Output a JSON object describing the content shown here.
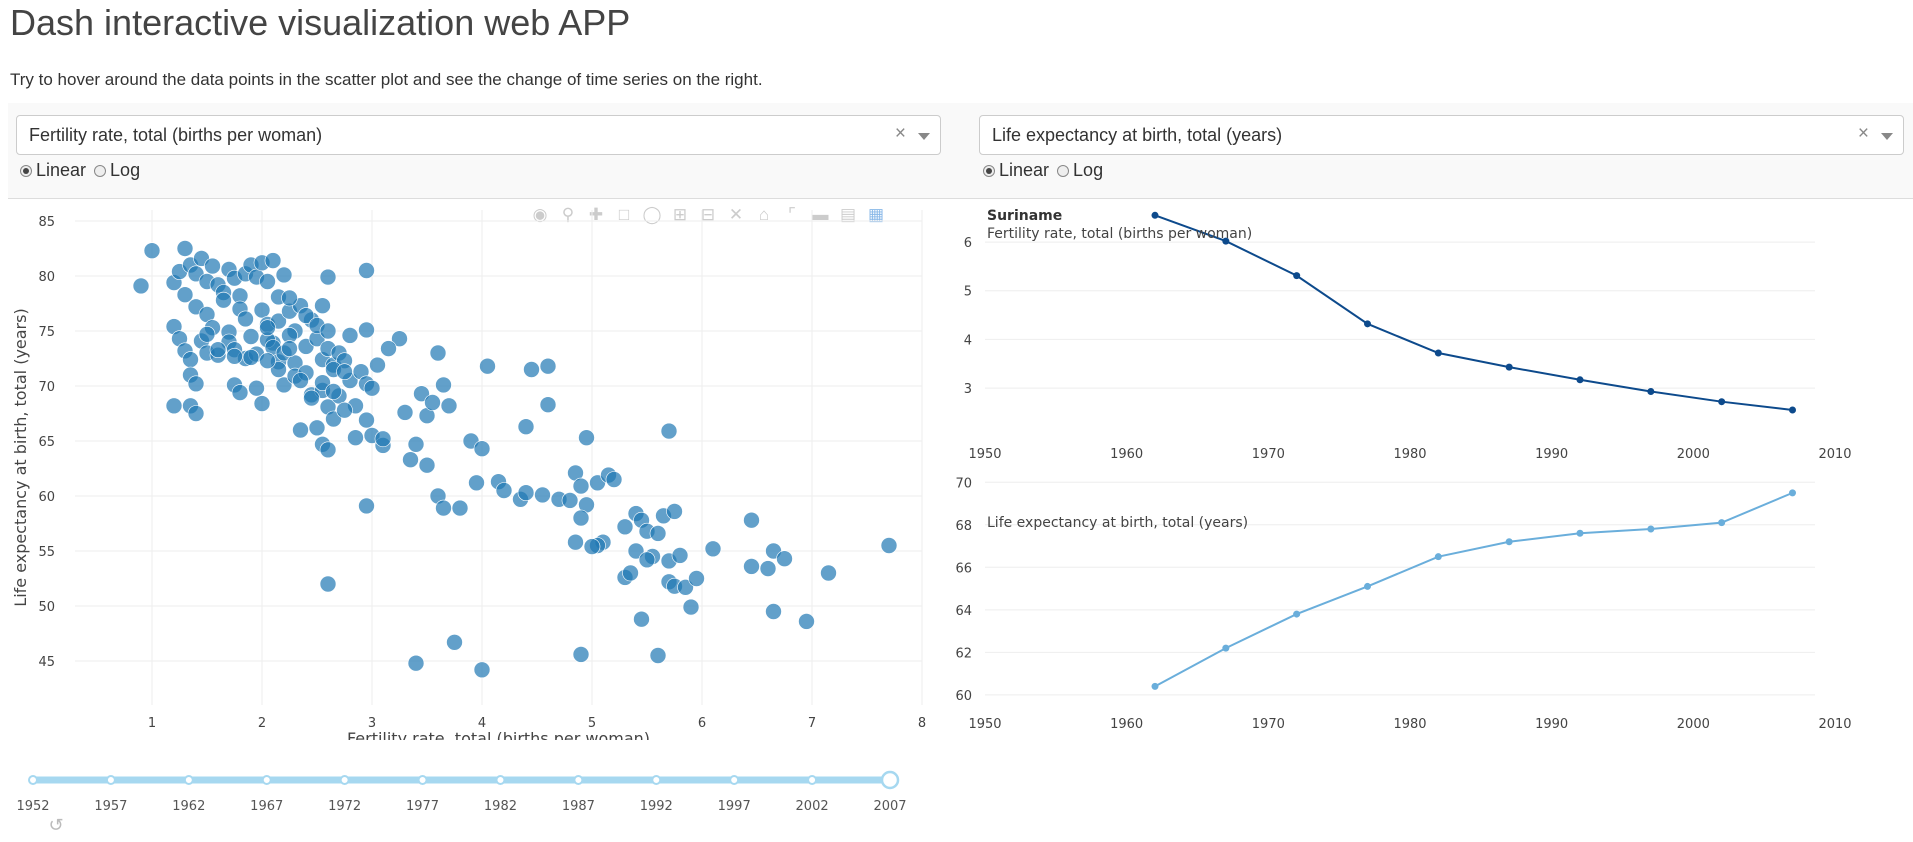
{
  "page": {
    "title": "Dash interactive visualization web APP",
    "subtitle": "Try to hover around the data points in the scatter plot and see the change of time series on the right."
  },
  "controls": {
    "left": {
      "dropdown_value": "Fertility rate, total (births per woman)",
      "clear": "×",
      "radio_options": [
        "Linear",
        "Log"
      ],
      "selected": "Linear"
    },
    "right": {
      "dropdown_value": "Life expectancy at birth, total (years)",
      "clear": "×",
      "radio_options": [
        "Linear",
        "Log"
      ],
      "selected": "Linear"
    }
  },
  "modebar_icons": [
    "camera-icon",
    "zoom-icon",
    "pan-icon",
    "box-select-icon",
    "lasso-icon",
    "zoom-in-icon",
    "zoom-out-icon",
    "autoscale-icon",
    "reset-axes-icon",
    "spike-lines-icon",
    "hover-closest-icon",
    "hover-compare-icon",
    "plotly-logo-icon"
  ],
  "colors": {
    "scatter": "#1f77b4",
    "series_top": "#0d4a8c",
    "series_bottom": "#6aaedb",
    "slider": "#a6d8f0",
    "grid": "#eeeeee"
  },
  "chart_data": [
    {
      "type": "scatter",
      "xlabel": "Fertility rate, total (births per woman)",
      "ylabel": "Life expectancy at birth, total (years)",
      "xlim": [
        0.3,
        8.0
      ],
      "ylim": [
        41,
        86
      ],
      "xticks": [
        1,
        2,
        3,
        4,
        5,
        6,
        7,
        8
      ],
      "yticks": [
        45,
        50,
        55,
        60,
        65,
        70,
        75,
        80,
        85
      ],
      "points": [
        [
          0.9,
          79.1
        ],
        [
          1.0,
          82.3
        ],
        [
          1.2,
          79.4
        ],
        [
          1.25,
          80.4
        ],
        [
          1.3,
          82.5
        ],
        [
          1.35,
          81.0
        ],
        [
          1.4,
          80.2
        ],
        [
          1.45,
          81.6
        ],
        [
          1.3,
          78.3
        ],
        [
          1.5,
          79.5
        ],
        [
          1.55,
          80.9
        ],
        [
          1.6,
          79.2
        ],
        [
          1.65,
          78.5
        ],
        [
          1.7,
          80.6
        ],
        [
          1.75,
          79.8
        ],
        [
          1.8,
          78.2
        ],
        [
          1.85,
          80.2
        ],
        [
          1.9,
          81.0
        ],
        [
          1.95,
          79.9
        ],
        [
          2.0,
          81.2
        ],
        [
          2.05,
          79.5
        ],
        [
          2.1,
          81.4
        ],
        [
          2.15,
          78.1
        ],
        [
          2.2,
          80.1
        ],
        [
          1.4,
          77.2
        ],
        [
          1.5,
          76.5
        ],
        [
          1.55,
          75.3
        ],
        [
          1.65,
          77.8
        ],
        [
          1.7,
          74.9
        ],
        [
          1.8,
          77.0
        ],
        [
          1.85,
          76.1
        ],
        [
          1.9,
          74.5
        ],
        [
          2.0,
          76.9
        ],
        [
          2.05,
          75.6
        ],
        [
          2.1,
          73.9
        ],
        [
          2.15,
          75.9
        ],
        [
          2.25,
          76.8
        ],
        [
          2.3,
          75.0
        ],
        [
          2.35,
          77.3
        ],
        [
          2.45,
          76.0
        ],
        [
          1.2,
          75.4
        ],
        [
          1.25,
          74.3
        ],
        [
          1.3,
          73.2
        ],
        [
          1.35,
          72.4
        ],
        [
          1.45,
          74.1
        ],
        [
          1.5,
          73.0
        ],
        [
          1.6,
          72.8
        ],
        [
          1.7,
          74.0
        ],
        [
          1.75,
          73.3
        ],
        [
          1.85,
          72.5
        ],
        [
          1.95,
          72.9
        ],
        [
          2.05,
          74.2
        ],
        [
          2.1,
          73.5
        ],
        [
          2.15,
          72.2
        ],
        [
          2.2,
          73.0
        ],
        [
          2.25,
          74.6
        ],
        [
          2.3,
          72.1
        ],
        [
          2.4,
          73.6
        ],
        [
          2.5,
          74.3
        ],
        [
          2.55,
          72.4
        ],
        [
          2.6,
          73.4
        ],
        [
          2.65,
          71.9
        ],
        [
          2.7,
          73.0
        ],
        [
          2.75,
          72.3
        ],
        [
          1.35,
          71.0
        ],
        [
          1.4,
          70.2
        ],
        [
          1.75,
          70.1
        ],
        [
          1.8,
          69.4
        ],
        [
          1.95,
          69.8
        ],
        [
          2.0,
          68.4
        ],
        [
          2.15,
          71.5
        ],
        [
          2.2,
          70.1
        ],
        [
          2.3,
          70.9
        ],
        [
          2.45,
          69.2
        ],
        [
          2.55,
          69.6
        ],
        [
          2.6,
          68.1
        ],
        [
          2.7,
          69.1
        ],
        [
          2.8,
          70.5
        ],
        [
          2.85,
          68.2
        ],
        [
          2.9,
          71.3
        ],
        [
          2.95,
          70.2
        ],
        [
          3.0,
          69.8
        ],
        [
          3.05,
          71.9
        ],
        [
          2.65,
          67.0
        ],
        [
          2.75,
          67.8
        ],
        [
          2.5,
          66.2
        ],
        [
          2.35,
          66.0
        ],
        [
          2.55,
          64.7
        ],
        [
          2.6,
          64.2
        ],
        [
          2.85,
          65.3
        ],
        [
          2.95,
          66.9
        ],
        [
          3.0,
          65.5
        ],
        [
          3.1,
          64.6
        ],
        [
          3.1,
          65.2
        ],
        [
          3.25,
          74.3
        ],
        [
          3.15,
          73.4
        ],
        [
          1.2,
          68.2
        ],
        [
          1.35,
          68.2
        ],
        [
          1.4,
          67.5
        ],
        [
          2.25,
          78.0
        ],
        [
          2.4,
          76.4
        ],
        [
          2.55,
          77.3
        ],
        [
          2.6,
          79.9
        ],
        [
          2.8,
          74.6
        ],
        [
          2.95,
          75.1
        ],
        [
          2.95,
          80.5
        ],
        [
          3.3,
          67.6
        ],
        [
          3.45,
          69.3
        ],
        [
          3.5,
          67.3
        ],
        [
          3.55,
          68.5
        ],
        [
          3.6,
          73.0
        ],
        [
          3.65,
          70.1
        ],
        [
          3.7,
          68.2
        ],
        [
          4.05,
          71.8
        ],
        [
          4.45,
          71.5
        ],
        [
          4.6,
          71.8
        ],
        [
          4.6,
          68.3
        ],
        [
          4.4,
          66.3
        ],
        [
          3.4,
          64.7
        ],
        [
          3.35,
          63.3
        ],
        [
          3.5,
          62.8
        ],
        [
          3.6,
          60.0
        ],
        [
          3.65,
          58.9
        ],
        [
          3.8,
          58.9
        ],
        [
          3.9,
          65.0
        ],
        [
          4.0,
          64.3
        ],
        [
          3.95,
          61.2
        ],
        [
          4.15,
          61.3
        ],
        [
          4.2,
          60.5
        ],
        [
          4.35,
          59.7
        ],
        [
          4.4,
          60.3
        ],
        [
          4.55,
          60.1
        ],
        [
          4.7,
          59.7
        ],
        [
          4.8,
          59.6
        ],
        [
          4.85,
          62.1
        ],
        [
          4.9,
          60.9
        ],
        [
          4.95,
          59.2
        ],
        [
          4.9,
          58.0
        ],
        [
          4.95,
          65.3
        ],
        [
          5.05,
          61.2
        ],
        [
          5.15,
          61.9
        ],
        [
          5.2,
          61.5
        ],
        [
          5.1,
          55.8
        ],
        [
          5.05,
          55.5
        ],
        [
          5.3,
          57.2
        ],
        [
          5.4,
          58.4
        ],
        [
          5.45,
          57.8
        ],
        [
          5.5,
          56.8
        ],
        [
          5.55,
          54.5
        ],
        [
          5.6,
          56.6
        ],
        [
          5.65,
          58.2
        ],
        [
          5.75,
          58.6
        ],
        [
          5.7,
          54.1
        ],
        [
          5.8,
          54.6
        ],
        [
          5.3,
          52.6
        ],
        [
          5.35,
          53.0
        ],
        [
          5.7,
          52.2
        ],
        [
          5.75,
          51.8
        ],
        [
          5.85,
          51.7
        ],
        [
          5.95,
          52.5
        ],
        [
          5.9,
          49.9
        ],
        [
          5.45,
          48.8
        ],
        [
          4.85,
          55.8
        ],
        [
          5.0,
          55.4
        ],
        [
          5.4,
          55.0
        ],
        [
          5.5,
          54.2
        ],
        [
          5.7,
          65.9
        ],
        [
          6.1,
          55.2
        ],
        [
          6.45,
          57.8
        ],
        [
          6.45,
          53.6
        ],
        [
          6.6,
          53.4
        ],
        [
          6.65,
          55.0
        ],
        [
          6.75,
          54.3
        ],
        [
          6.65,
          49.5
        ],
        [
          6.95,
          48.6
        ],
        [
          7.15,
          53.0
        ],
        [
          7.7,
          55.5
        ],
        [
          2.6,
          52.0
        ],
        [
          3.4,
          44.8
        ],
        [
          3.75,
          46.7
        ],
        [
          4.0,
          44.2
        ],
        [
          4.9,
          45.6
        ],
        [
          5.6,
          45.5
        ],
        [
          2.95,
          59.1
        ],
        [
          2.05,
          75.3
        ],
        [
          1.5,
          74.7
        ],
        [
          1.6,
          73.3
        ],
        [
          1.75,
          72.7
        ],
        [
          1.9,
          72.6
        ],
        [
          2.05,
          72.3
        ],
        [
          2.25,
          73.4
        ],
        [
          2.5,
          75.5
        ],
        [
          2.6,
          75.0
        ],
        [
          2.65,
          71.5
        ],
        [
          2.75,
          71.3
        ],
        [
          2.55,
          70.3
        ],
        [
          2.45,
          68.9
        ],
        [
          2.65,
          69.5
        ],
        [
          2.4,
          71.2
        ],
        [
          2.35,
          70.5
        ]
      ]
    },
    {
      "type": "line",
      "title": "Suriname",
      "annotation": "Fertility rate, total (births per woman)",
      "xlim": [
        1950,
        2010
      ],
      "ylim": [
        2.2,
        6.7
      ],
      "xticks": [
        1950,
        1960,
        1970,
        1980,
        1990,
        2000,
        2010
      ],
      "yticks": [
        3,
        4,
        5,
        6
      ],
      "x": [
        1962,
        1967,
        1972,
        1977,
        1982,
        1987,
        1992,
        1997,
        2002,
        2007
      ],
      "y": [
        6.55,
        6.02,
        5.31,
        4.32,
        3.72,
        3.43,
        3.17,
        2.93,
        2.72,
        2.55
      ]
    },
    {
      "type": "line",
      "annotation": "Life expectancy at birth, total (years)",
      "xlim": [
        1950,
        2010
      ],
      "ylim": [
        59.9,
        70.2
      ],
      "xticks": [
        1950,
        1960,
        1970,
        1980,
        1990,
        2000,
        2010
      ],
      "yticks": [
        60,
        62,
        64,
        66,
        68,
        70
      ],
      "x": [
        1962,
        1967,
        1972,
        1977,
        1982,
        1987,
        1992,
        1997,
        2002,
        2007
      ],
      "y": [
        60.4,
        62.2,
        63.8,
        65.1,
        66.5,
        67.2,
        67.6,
        67.8,
        68.1,
        69.5
      ]
    }
  ],
  "slider": {
    "marks": [
      "1952",
      "1957",
      "1962",
      "1967",
      "1972",
      "1977",
      "1982",
      "1987",
      "1992",
      "1997",
      "2002",
      "2007"
    ],
    "selected_index": 11
  }
}
